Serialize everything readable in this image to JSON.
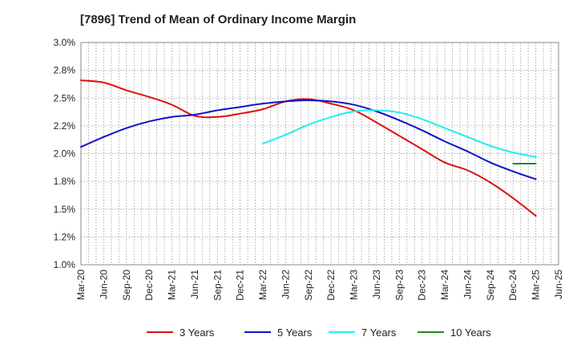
{
  "chart_data": {
    "type": "line",
    "title": "[7896]  Trend of Mean of Ordinary Income Margin",
    "xlabel": "",
    "ylabel": "",
    "x_ticks": [
      "Mar-20",
      "Jun-20",
      "Sep-20",
      "Dec-20",
      "Mar-21",
      "Jun-21",
      "Sep-21",
      "Dec-21",
      "Mar-22",
      "Jun-22",
      "Sep-22",
      "Dec-22",
      "Mar-23",
      "Jun-23",
      "Sep-23",
      "Dec-23",
      "Mar-24",
      "Jun-24",
      "Sep-24",
      "Dec-24",
      "Mar-25",
      "Jun-25"
    ],
    "y_ticks": [
      "1.0%",
      "1.2%",
      "1.5%",
      "1.8%",
      "2.0%",
      "2.2%",
      "2.5%",
      "2.8%",
      "3.0%"
    ],
    "ylim": [
      1.0,
      3.0
    ],
    "grid": true,
    "legend_position": "bottom",
    "series": [
      {
        "name": "3 Years",
        "color": "#dd1111",
        "x": [
          "Mar-20",
          "Jun-20",
          "Sep-20",
          "Dec-20",
          "Mar-21",
          "Jun-21",
          "Sep-21",
          "Dec-21",
          "Mar-22",
          "Jun-22",
          "Sep-22",
          "Dec-22",
          "Mar-23",
          "Jun-23",
          "Sep-23",
          "Dec-23",
          "Mar-24",
          "Jun-24",
          "Sep-24",
          "Dec-24",
          "Mar-25"
        ],
        "values": [
          2.66,
          2.64,
          2.57,
          2.51,
          2.44,
          2.34,
          2.33,
          2.36,
          2.4,
          2.47,
          2.49,
          2.45,
          2.39,
          2.28,
          2.16,
          2.04,
          1.92,
          1.85,
          1.74,
          1.6,
          1.44
        ]
      },
      {
        "name": "5 Years",
        "color": "#1111cc",
        "x": [
          "Mar-20",
          "Jun-20",
          "Sep-20",
          "Dec-20",
          "Mar-21",
          "Jun-21",
          "Sep-21",
          "Dec-21",
          "Mar-22",
          "Jun-22",
          "Sep-22",
          "Dec-22",
          "Mar-23",
          "Jun-23",
          "Sep-23",
          "Dec-23",
          "Mar-24",
          "Jun-24",
          "Sep-24",
          "Dec-24",
          "Mar-25"
        ],
        "values": [
          2.06,
          2.15,
          2.23,
          2.29,
          2.33,
          2.35,
          2.39,
          2.42,
          2.45,
          2.47,
          2.48,
          2.47,
          2.44,
          2.38,
          2.3,
          2.21,
          2.11,
          2.02,
          1.92,
          1.84,
          1.77
        ]
      },
      {
        "name": "7 Years",
        "color": "#22eeee",
        "x": [
          "Mar-22",
          "Jun-22",
          "Sep-22",
          "Dec-22",
          "Mar-23",
          "Jun-23",
          "Sep-23",
          "Dec-23",
          "Mar-24",
          "Jun-24",
          "Sep-24",
          "Dec-24",
          "Mar-25"
        ],
        "values": [
          2.09,
          2.17,
          2.26,
          2.33,
          2.38,
          2.39,
          2.37,
          2.31,
          2.23,
          2.15,
          2.07,
          2.01,
          1.97
        ]
      },
      {
        "name": "10 Years",
        "color": "#228822",
        "x": [
          "Dec-24",
          "Mar-25"
        ],
        "values": [
          1.91,
          1.91
        ]
      }
    ]
  }
}
